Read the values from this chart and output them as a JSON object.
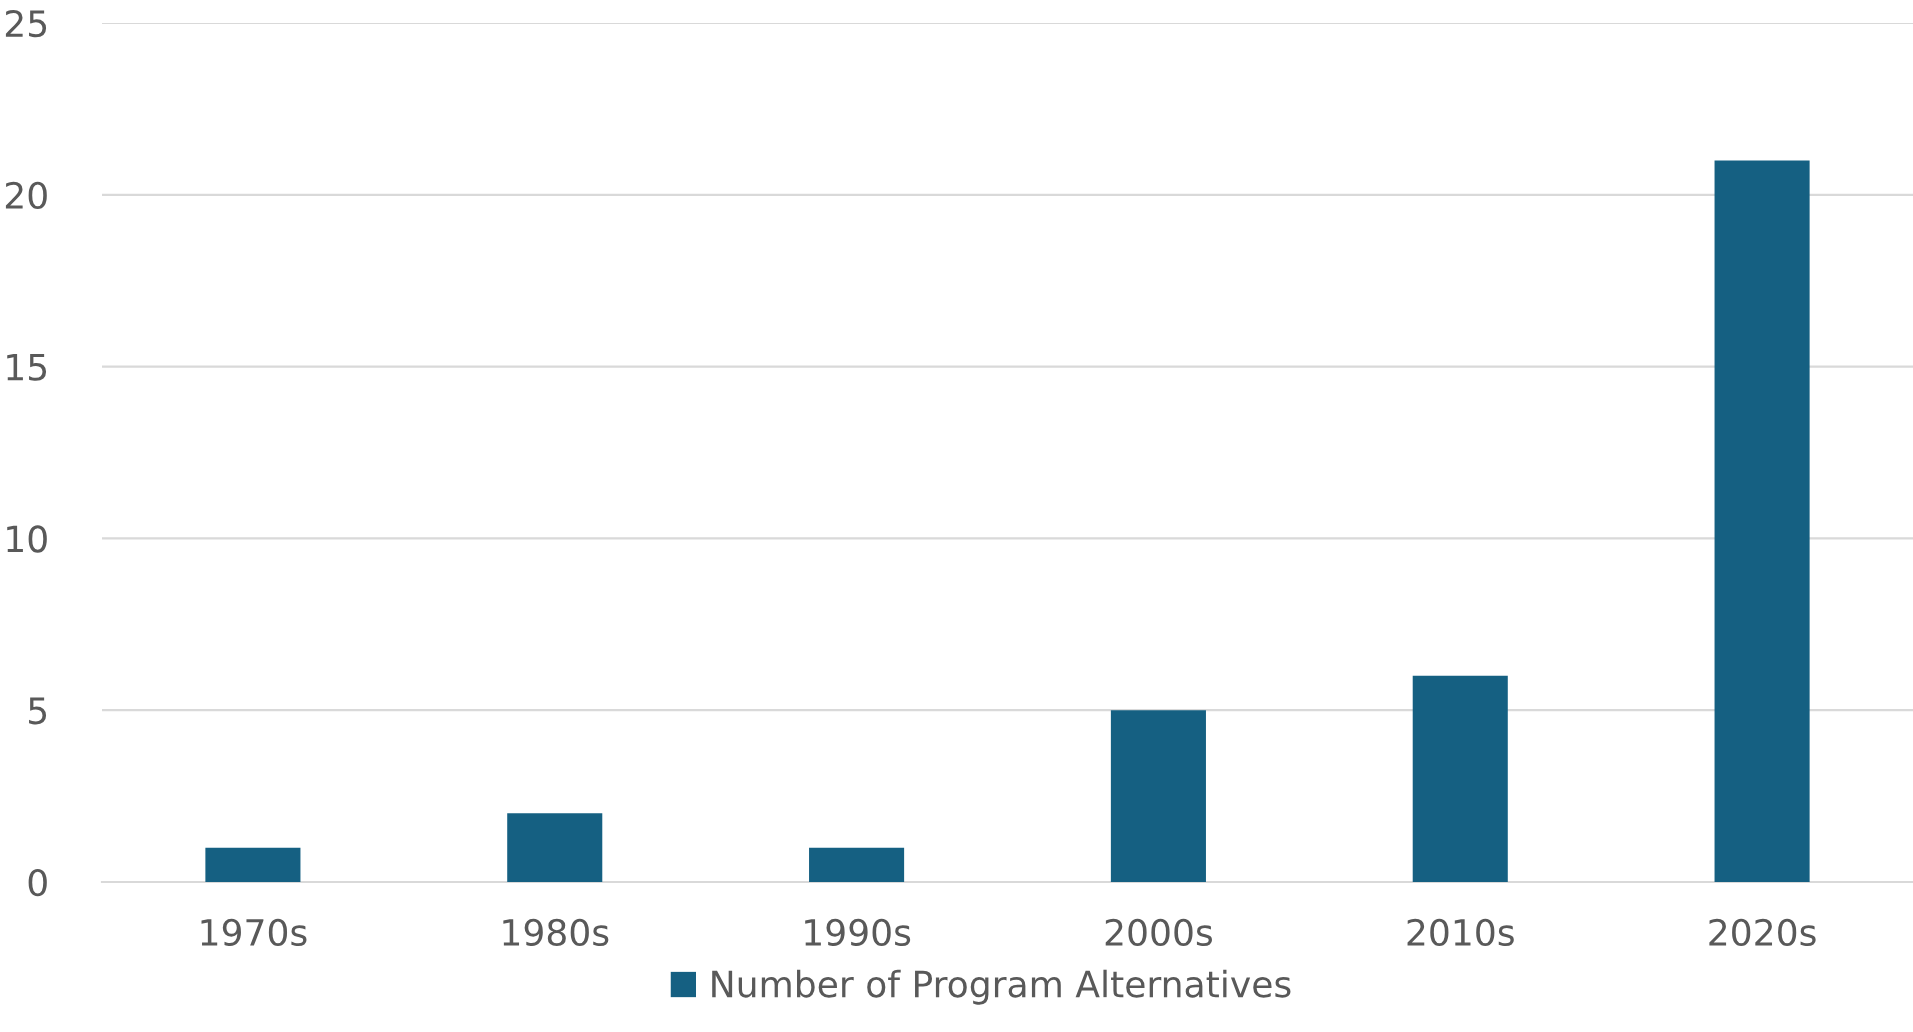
{
  "chart_data": {
    "type": "bar",
    "categories": [
      "1970s",
      "1980s",
      "1990s",
      "2000s",
      "2010s",
      "2020s"
    ],
    "series": [
      {
        "name": "Number of Program Alternatives",
        "color": "#156082",
        "values": [
          1,
          2,
          1,
          5,
          6,
          21
        ]
      }
    ],
    "ylim": [
      0,
      25
    ],
    "yticks": [
      0,
      5,
      10,
      15,
      20,
      25
    ],
    "grid": "y",
    "legend": "bottom"
  }
}
